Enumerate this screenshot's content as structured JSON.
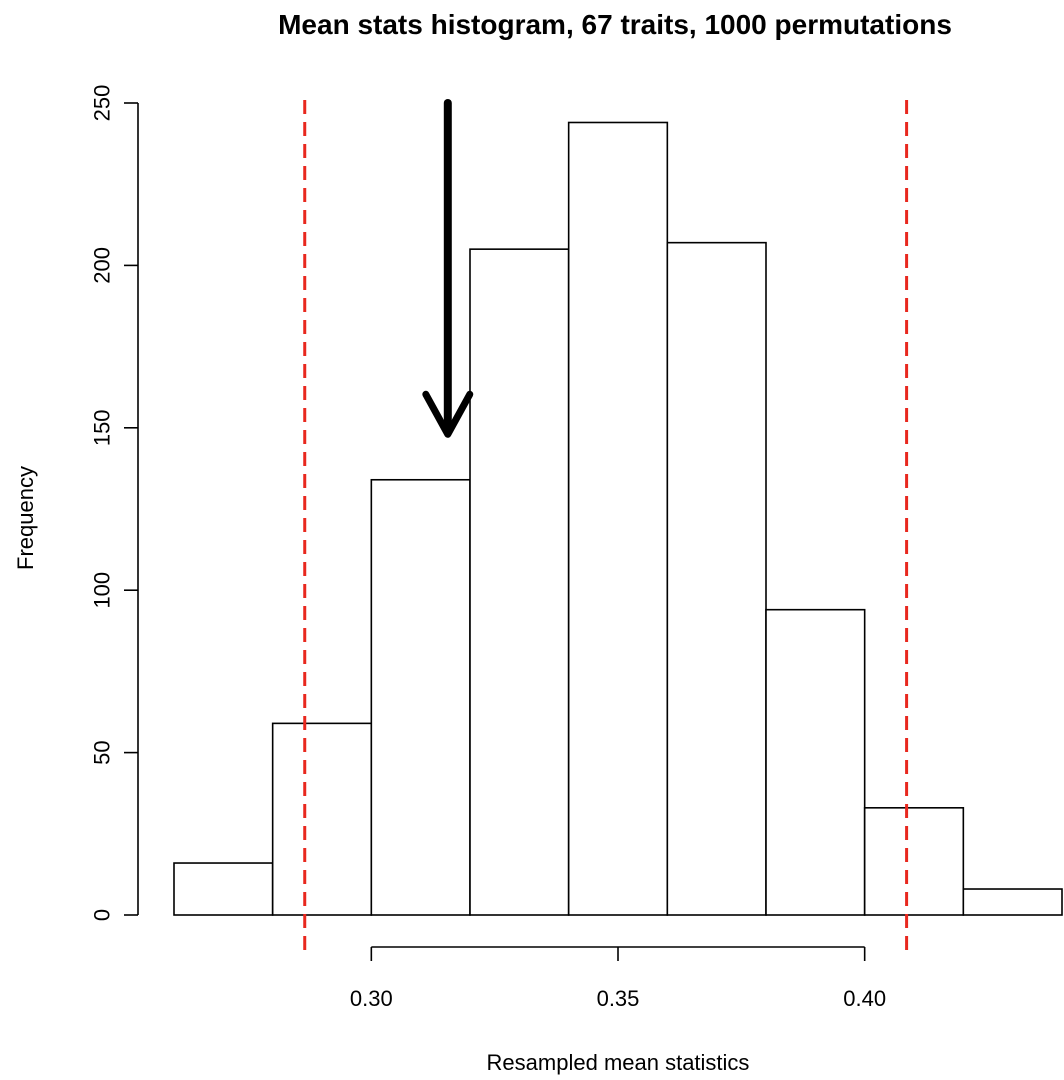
{
  "chart_data": {
    "type": "bar",
    "title": "Mean stats histogram, 67 traits, 1000 permutations",
    "xlabel": "Resampled mean statistics",
    "ylabel": "Frequency",
    "bins": [
      {
        "from": 0.26,
        "to": 0.28,
        "count": 16
      },
      {
        "from": 0.28,
        "to": 0.3,
        "count": 59
      },
      {
        "from": 0.3,
        "to": 0.32,
        "count": 134
      },
      {
        "from": 0.32,
        "to": 0.34,
        "count": 205
      },
      {
        "from": 0.34,
        "to": 0.36,
        "count": 244
      },
      {
        "from": 0.36,
        "to": 0.38,
        "count": 207
      },
      {
        "from": 0.38,
        "to": 0.4,
        "count": 94
      },
      {
        "from": 0.4,
        "to": 0.42,
        "count": 33
      },
      {
        "from": 0.42,
        "to": 0.44,
        "count": 8
      }
    ],
    "xticks": [
      {
        "value": 0.3,
        "label": "0.30"
      },
      {
        "value": 0.35,
        "label": "0.35"
      },
      {
        "value": 0.4,
        "label": "0.40"
      }
    ],
    "yticks": [
      {
        "value": 0,
        "label": "0"
      },
      {
        "value": 50,
        "label": "50"
      },
      {
        "value": 100,
        "label": "100"
      },
      {
        "value": 150,
        "label": "150"
      },
      {
        "value": 200,
        "label": "200"
      },
      {
        "value": 250,
        "label": "250"
      }
    ],
    "xlim": [
      0.26,
      0.44
    ],
    "ylim": [
      0,
      250
    ],
    "grid": false,
    "reference_lines": [
      {
        "x": 0.2865,
        "style": "dashed",
        "color": "#e8281e"
      },
      {
        "x": 0.4085,
        "style": "dashed",
        "color": "#e8281e"
      }
    ],
    "annotation_arrow": {
      "x": 0.3155,
      "y_from": 250,
      "y_to": 148,
      "color": "#000000"
    },
    "bar_fill": "#ffffff",
    "bar_stroke": "#000000"
  }
}
